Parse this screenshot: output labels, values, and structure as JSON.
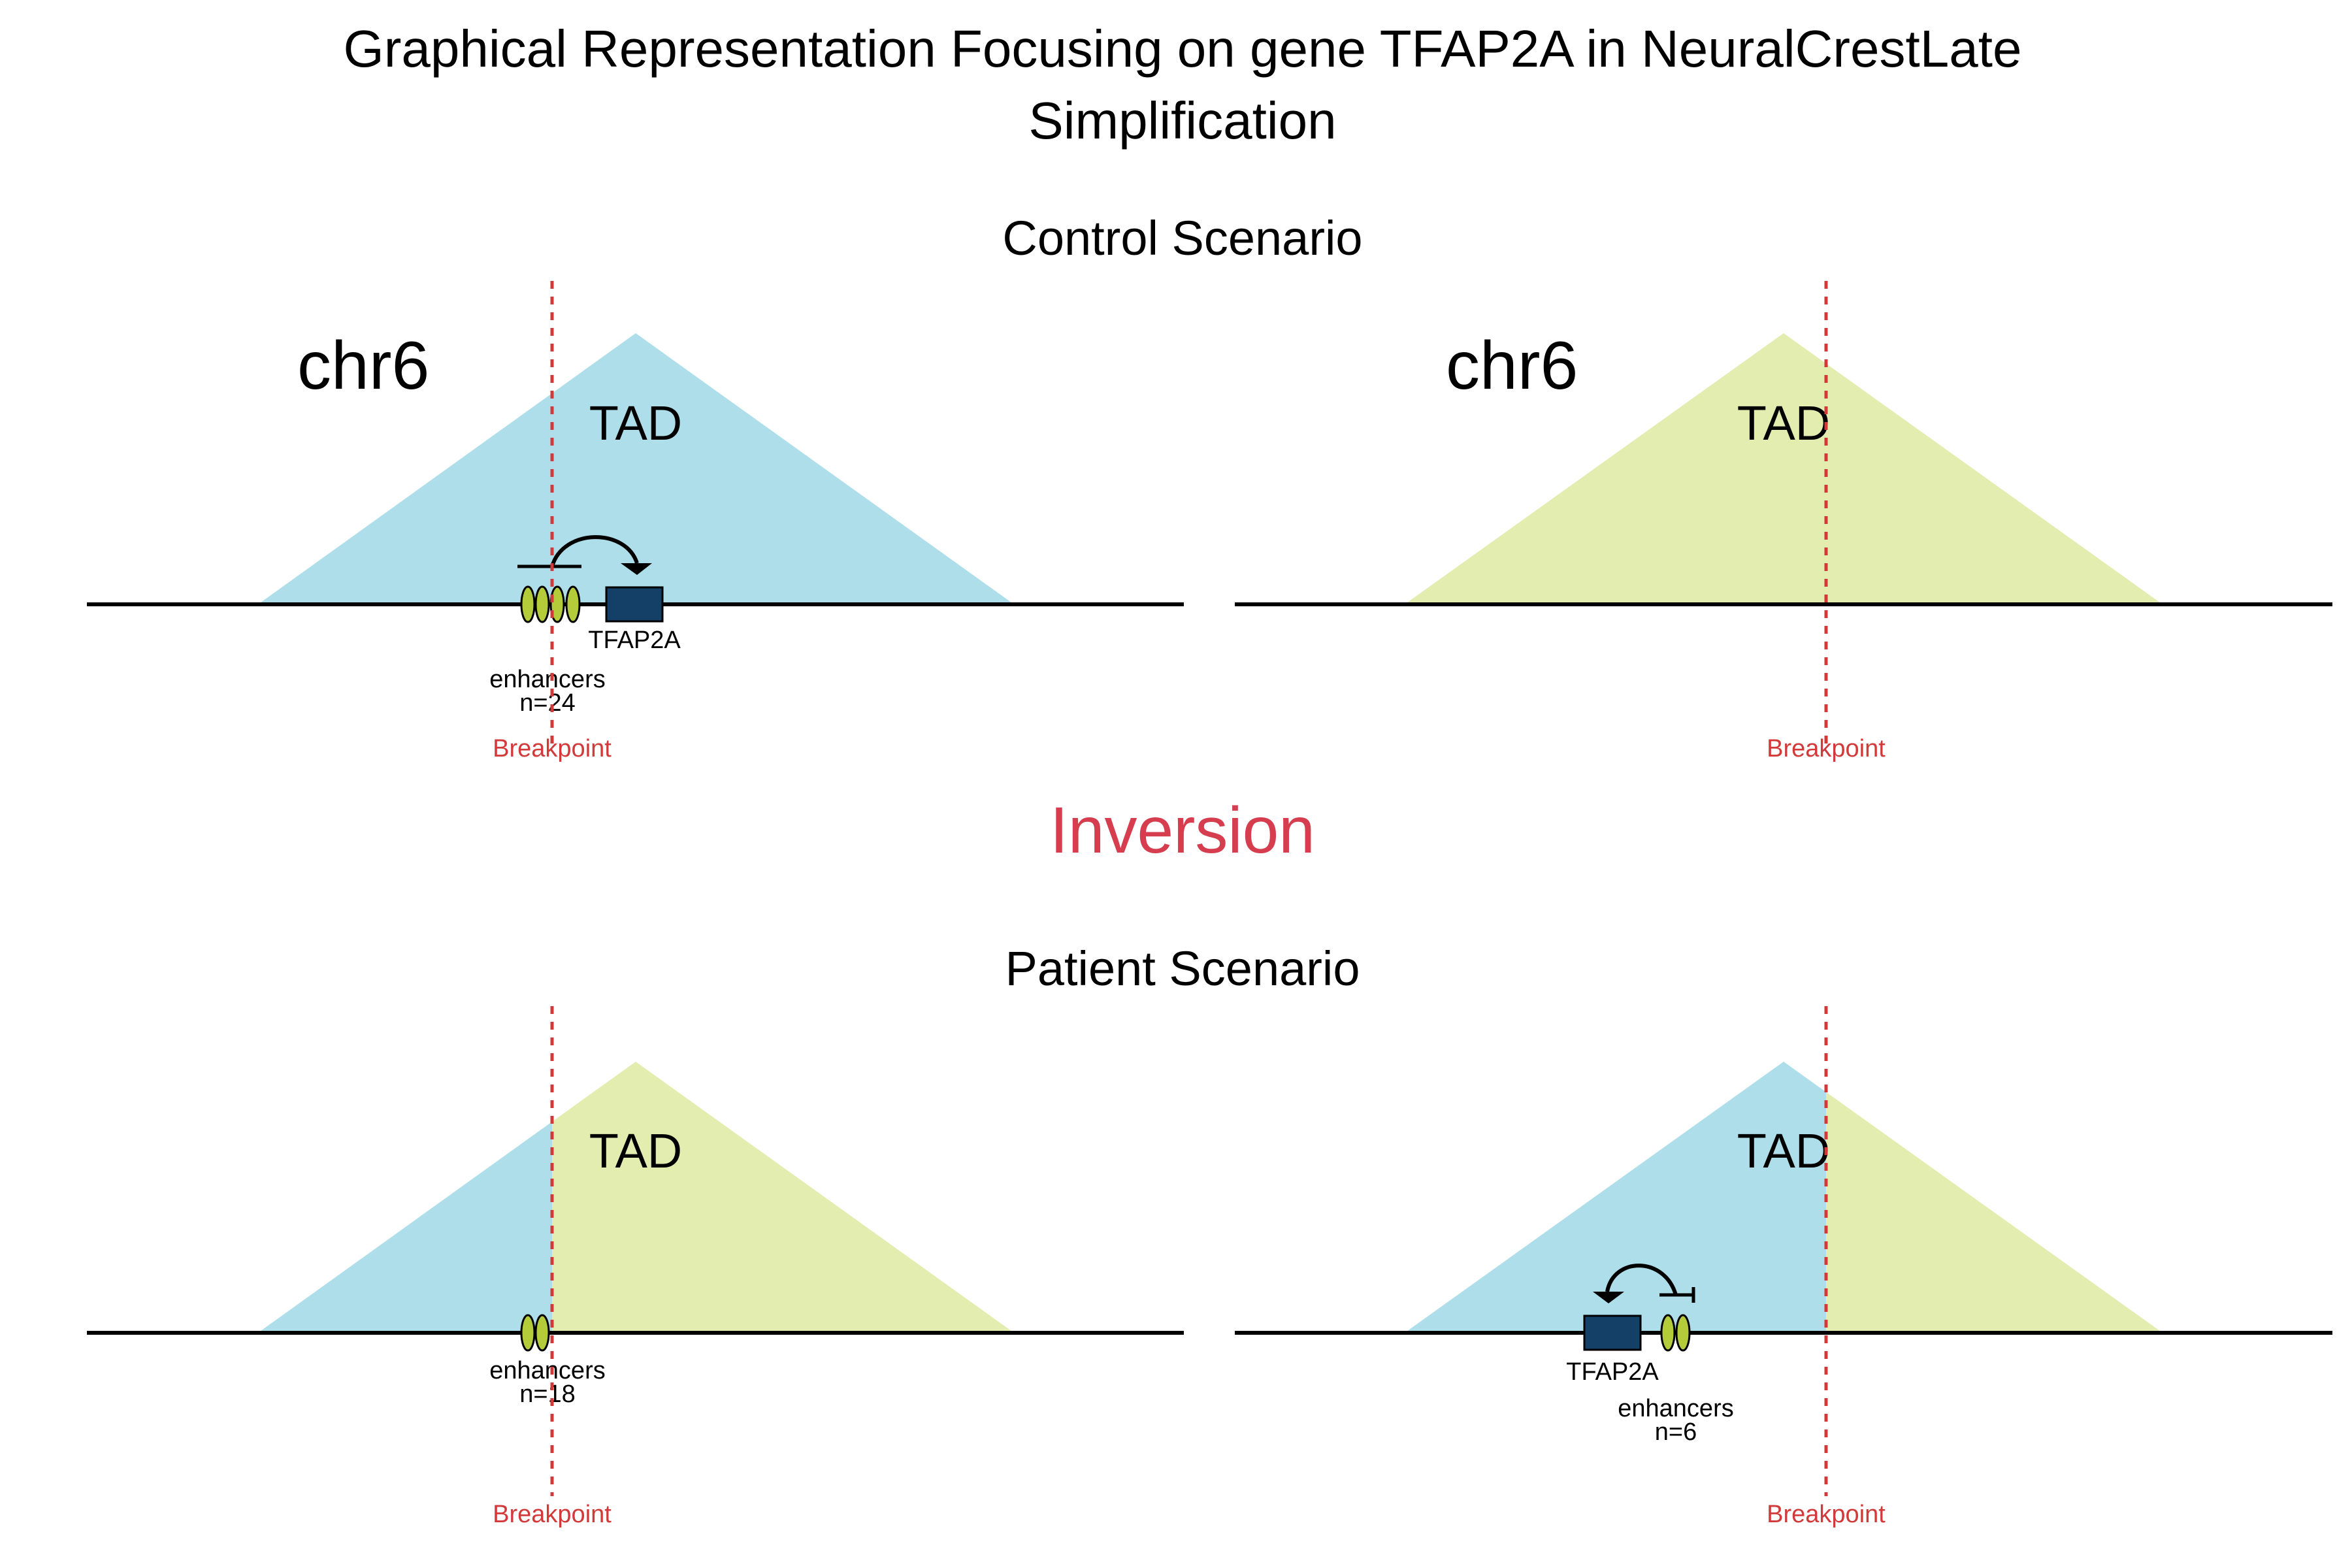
{
  "title": {
    "line1": "Graphical Representation Focusing on gene TFAP2A in NeuralCrestLate",
    "line2": "Simplification"
  },
  "sections": {
    "control": "Control Scenario",
    "event": "Inversion",
    "patient": "Patient Scenario"
  },
  "labels": {
    "chromosome": "chr6",
    "tad": "TAD",
    "breakpoint": "Breakpoint",
    "gene": "TFAP2A",
    "enhancers": "enhancers"
  },
  "enhancer_counts": {
    "control_left": "n=24",
    "patient_left": "n=18",
    "patient_right": "n=6"
  },
  "colors": {
    "tad_blue": "#ADDEEA",
    "tad_green": "#E3EDB0",
    "enhancer": "#B5CC3A",
    "gene": "#143F66",
    "breakpoint": "#D23A3A",
    "event_text": "#D63D4F",
    "line": "#000000"
  }
}
